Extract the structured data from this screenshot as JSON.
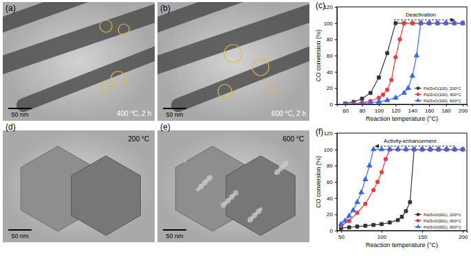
{
  "panels": [
    {
      "label": "(a)",
      "caption": "400 °C, 2 h",
      "scale_bar": "50 nm"
    },
    {
      "label": "(b)",
      "caption": "600 °C, 2 h",
      "scale_bar": "50 nm"
    },
    {
      "label": "(d)",
      "caption": "200 °C",
      "scale_bar": "50 nm"
    },
    {
      "label": "(e)",
      "caption": "600 °C",
      "scale_bar": "50 nm"
    }
  ],
  "chart_data": [
    {
      "type": "line",
      "title": "(c)",
      "x_label": "Reaction temperature (°C)",
      "y_label": "CO conversion (%)",
      "xlim": [
        50,
        205
      ],
      "xticks": [
        60,
        80,
        100,
        120,
        140,
        160,
        180,
        200
      ],
      "ylim": [
        0,
        120
      ],
      "yticks": [
        0,
        20,
        40,
        60,
        80,
        100,
        120
      ],
      "legend": "lower right",
      "annotations": [
        "Deactivation"
      ],
      "series": [
        {
          "name": "Pd/ZnO(100), 200°C",
          "color": "#333333",
          "marker": "square",
          "x": [
            60,
            70,
            80,
            90,
            100,
            110,
            120,
            130,
            140,
            150,
            160,
            170,
            180,
            190,
            200
          ],
          "values": [
            1,
            3,
            7,
            14,
            33,
            63,
            100,
            100,
            100,
            100,
            100,
            100,
            100,
            100,
            100
          ]
        },
        {
          "name": "Pd/ZnO(100), 400°C",
          "color": "#ff3333",
          "marker": "circle",
          "x": [
            60,
            70,
            80,
            90,
            100,
            105,
            110,
            115,
            120,
            125,
            130,
            140,
            150,
            160,
            170,
            180,
            190,
            200
          ],
          "values": [
            0,
            1,
            2,
            4,
            8,
            12,
            18,
            30,
            58,
            80,
            100,
            100,
            100,
            100,
            100,
            100,
            100,
            100
          ]
        },
        {
          "name": "Pd/ZnO(100), 600°C",
          "color": "#3366ff",
          "marker": "triangle",
          "x": [
            60,
            70,
            80,
            90,
            100,
            110,
            120,
            130,
            135,
            140,
            145,
            150,
            160,
            170,
            180,
            190,
            200
          ],
          "values": [
            0,
            0,
            1,
            2,
            3,
            5,
            8,
            14,
            20,
            35,
            60,
            100,
            100,
            100,
            100,
            100,
            100
          ]
        }
      ]
    },
    {
      "type": "line",
      "title": "(f)",
      "x_label": "Reaction temperature (°C)",
      "y_label": "CO conversion (%)",
      "xlim": [
        45,
        205
      ],
      "xticks": [
        50,
        100,
        150,
        200
      ],
      "ylim": [
        0,
        120
      ],
      "yticks": [
        0,
        20,
        40,
        60,
        80,
        100,
        120
      ],
      "legend": "lower right",
      "annotations": [
        "Activity-enhancement"
      ],
      "series": [
        {
          "name": "Pd/ZnO(001), 200°C",
          "color": "#333333",
          "marker": "square",
          "x": [
            50,
            60,
            70,
            80,
            90,
            100,
            110,
            120,
            125,
            130,
            135,
            140,
            150,
            160,
            170,
            180,
            190,
            200
          ],
          "values": [
            3,
            4,
            5,
            6,
            7,
            8,
            10,
            13,
            17,
            24,
            35,
            100,
            100,
            100,
            100,
            100,
            100,
            100
          ]
        },
        {
          "name": "Pd/ZnO(001), 400°C",
          "color": "#ff3333",
          "marker": "circle",
          "x": [
            50,
            60,
            70,
            80,
            90,
            95,
            100,
            105,
            110,
            120,
            130,
            140,
            150,
            160,
            170,
            180,
            190,
            200
          ],
          "values": [
            6,
            12,
            22,
            33,
            50,
            60,
            72,
            88,
            100,
            100,
            100,
            100,
            100,
            100,
            100,
            100,
            100,
            100
          ]
        },
        {
          "name": "Pd/ZnO(001), 600°C",
          "color": "#3366ff",
          "marker": "triangle",
          "x": [
            50,
            55,
            60,
            65,
            70,
            75,
            80,
            85,
            90,
            100,
            110,
            120,
            130,
            140,
            150,
            160,
            170,
            180,
            190,
            200
          ],
          "values": [
            8,
            12,
            18,
            25,
            35,
            47,
            63,
            80,
            100,
            100,
            100,
            100,
            100,
            100,
            100,
            100,
            100,
            100,
            100,
            100
          ]
        }
      ]
    }
  ]
}
